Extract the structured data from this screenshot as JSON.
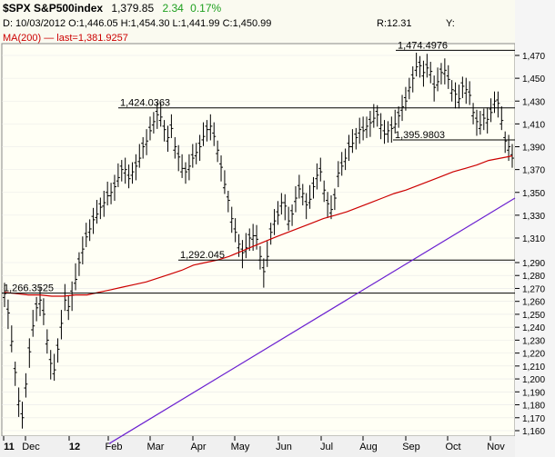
{
  "header": {
    "symbol": "$SPX S&P500index",
    "last": "1,379.85",
    "change": "2.34",
    "change_pct": "0.17%",
    "change_color": "#1fa01f",
    "ohlc_line": "D: 10/03/2012 O:1,446.05 H:1,454.30 L:1,441.99 C:1,450.99",
    "r_value": "R:12.31",
    "y_label": "Y:",
    "ma_line": "MA(200) — last=1,381.9257",
    "ma_color": "#cc0000"
  },
  "chart_data": {
    "type": "bar",
    "ylim": [
      1150,
      1475
    ],
    "y_ticks": [
      1160,
      1170,
      1180,
      1190,
      1200,
      1210,
      1220,
      1230,
      1240,
      1250,
      1260,
      1270,
      1280,
      1290,
      1310,
      1330,
      1350,
      1370,
      1390,
      1410,
      1430,
      1450,
      1470
    ],
    "y_tick_labels": [
      "1,160",
      "1,170",
      "1,180",
      "1,190",
      "1,200",
      "1,210",
      "1,220",
      "1,230",
      "1,240",
      "1,250",
      "1,260",
      "1,270",
      "1,280",
      "1,290",
      "1,310",
      "1,330",
      "1,350",
      "1,370",
      "1,390",
      "1,410",
      "1,430",
      "1,450",
      "1,470"
    ],
    "x_labels": [
      {
        "label": "11",
        "bold": true
      },
      {
        "label": "Dec",
        "bold": false
      },
      {
        "label": "12",
        "bold": true
      },
      {
        "label": "Feb",
        "bold": false
      },
      {
        "label": "Mar",
        "bold": false
      },
      {
        "label": "Apr",
        "bold": false
      },
      {
        "label": "May",
        "bold": false
      },
      {
        "label": "Jun",
        "bold": false
      },
      {
        "label": "Jul",
        "bold": false
      },
      {
        "label": "Aug",
        "bold": false
      },
      {
        "label": "Sep",
        "bold": false
      },
      {
        "label": "Oct",
        "bold": false
      },
      {
        "label": "Nov",
        "bold": false
      }
    ],
    "closes": [
      1266,
      1251,
      1229,
      1205,
      1183,
      1170,
      1196,
      1221,
      1241,
      1255,
      1261,
      1250,
      1230,
      1212,
      1207,
      1223,
      1243,
      1261,
      1256,
      1265,
      1277,
      1290,
      1301,
      1311,
      1318,
      1326,
      1331,
      1337,
      1341,
      1347,
      1350,
      1355,
      1363,
      1370,
      1370,
      1362,
      1368,
      1373,
      1380,
      1390,
      1395,
      1404,
      1412,
      1418,
      1416,
      1405,
      1398,
      1406,
      1390,
      1381,
      1371,
      1368,
      1373,
      1380,
      1385,
      1390,
      1399,
      1405,
      1408,
      1399,
      1387,
      1372,
      1357,
      1343,
      1327,
      1315,
      1305,
      1298,
      1302,
      1310,
      1312,
      1309,
      1295,
      1283,
      1295,
      1315,
      1325,
      1330,
      1341,
      1338,
      1325,
      1331,
      1345,
      1353,
      1349,
      1339,
      1344,
      1355,
      1365,
      1368,
      1352,
      1340,
      1335,
      1345,
      1367,
      1373,
      1380,
      1390,
      1393,
      1398,
      1405,
      1404,
      1408,
      1411,
      1415,
      1418,
      1409,
      1401,
      1404,
      1406,
      1410,
      1417,
      1425,
      1430,
      1442,
      1450,
      1460,
      1461,
      1455,
      1459,
      1456,
      1442,
      1447,
      1455,
      1457,
      1449,
      1440,
      1436,
      1432,
      1443,
      1440,
      1435,
      1420,
      1412,
      1409,
      1415,
      1414,
      1420,
      1430,
      1428,
      1413,
      1395,
      1390,
      1380
    ],
    "highs_lows_spread": 14,
    "ma200": [
      1267,
      1266,
      1265,
      1265,
      1264,
      1264,
      1265,
      1265,
      1267,
      1269,
      1271,
      1273,
      1275,
      1278,
      1281,
      1284,
      1288,
      1290,
      1292,
      1295,
      1299,
      1303,
      1307,
      1311,
      1315,
      1319,
      1323,
      1327,
      1330,
      1333,
      1337,
      1341,
      1345,
      1349,
      1352,
      1356,
      1360,
      1364,
      1368,
      1371,
      1374,
      1378,
      1380,
      1382
    ],
    "ma_name": "MA(200)",
    "levels": [
      {
        "value": 1474.4976,
        "label": "1,474.4976"
      },
      {
        "value": 1424.0363,
        "label": "1,424.0363"
      },
      {
        "value": 1395.9803,
        "label": "1,395.9803"
      },
      {
        "value": 1292.045,
        "label": "1,292.045"
      },
      {
        "value": 1266.3525,
        "label": "1,266.3525"
      }
    ],
    "trendline": {
      "start_value": 1150,
      "end_value": 1345,
      "color": "#6a1fd0"
    },
    "grid": true,
    "bar_color": "#000000",
    "ma_color": "#cc0000",
    "level_color": "#000000"
  }
}
